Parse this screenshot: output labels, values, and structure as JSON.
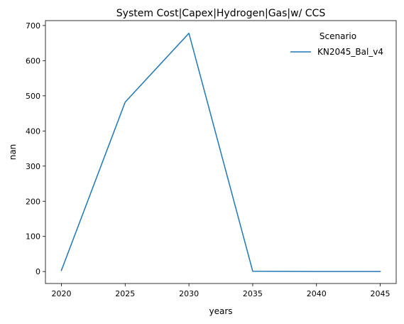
{
  "chart_data": {
    "type": "line",
    "title": "System Cost|Capex|Hydrogen|Gas|w/ CCS",
    "xlabel": "years",
    "ylabel": "nan",
    "x": [
      2020,
      2025,
      2030,
      2035,
      2040,
      2045
    ],
    "xticks": [
      "2020",
      "2025",
      "2030",
      "2035",
      "2040",
      "2045"
    ],
    "yticks": [
      "0",
      "100",
      "200",
      "300",
      "400",
      "500",
      "600",
      "700"
    ],
    "xlim": [
      2018.75,
      2046.25
    ],
    "ylim": [
      -34,
      714
    ],
    "grid": false,
    "legend": {
      "title": "Scenario",
      "placement": "top-right"
    },
    "series": [
      {
        "name": "KN2045_Bal_v4",
        "color": "#1f77b4",
        "values": [
          3,
          482,
          678,
          1,
          0,
          0
        ]
      }
    ]
  }
}
